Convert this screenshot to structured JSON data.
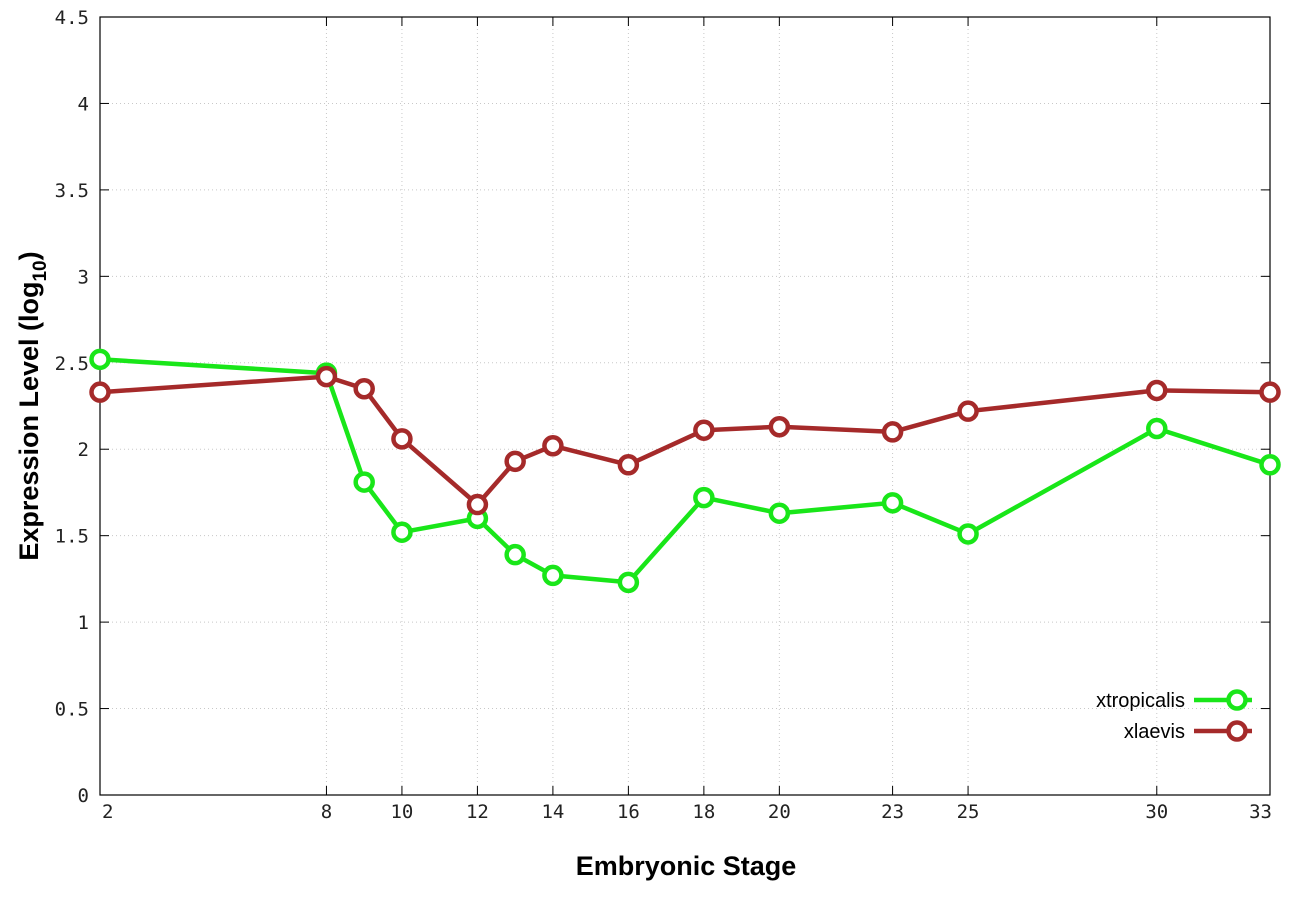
{
  "chart_data": {
    "type": "line",
    "title": "",
    "xlabel": "Embryonic Stage",
    "ylabel_main": "Expression Level (log",
    "ylabel_sub": "10",
    "ylabel_end": ")",
    "x": [
      2,
      8,
      9,
      10,
      12,
      13,
      14,
      16,
      18,
      20,
      23,
      25,
      30,
      33
    ],
    "xticks": [
      "2",
      "8",
      "10",
      "12",
      "14",
      "16",
      "18",
      "20",
      "23",
      "25",
      "30",
      "33"
    ],
    "xtick_values": [
      2,
      8,
      10,
      12,
      14,
      16,
      18,
      20,
      23,
      25,
      30,
      33
    ],
    "xlim": [
      2,
      33
    ],
    "ylim": [
      0,
      4.5
    ],
    "yticks": [
      "0",
      "0.5",
      "1",
      "1.5",
      "2",
      "2.5",
      "3",
      "3.5",
      "4",
      "4.5"
    ],
    "ytick_values": [
      0,
      0.5,
      1,
      1.5,
      2,
      2.5,
      3,
      3.5,
      4,
      4.5
    ],
    "grid": true,
    "legend_position": "bottom-right",
    "series": [
      {
        "name": "xtropicalis",
        "color": "#19e619",
        "values": [
          2.52,
          2.44,
          1.81,
          1.52,
          1.6,
          1.39,
          1.27,
          1.23,
          1.72,
          1.63,
          1.69,
          1.51,
          2.12,
          1.91
        ]
      },
      {
        "name": "xlaevis",
        "color": "#a52a2a",
        "values": [
          2.33,
          2.42,
          2.35,
          2.06,
          1.68,
          1.93,
          2.02,
          1.91,
          2.11,
          2.13,
          2.1,
          2.22,
          2.34,
          2.33
        ]
      }
    ]
  }
}
